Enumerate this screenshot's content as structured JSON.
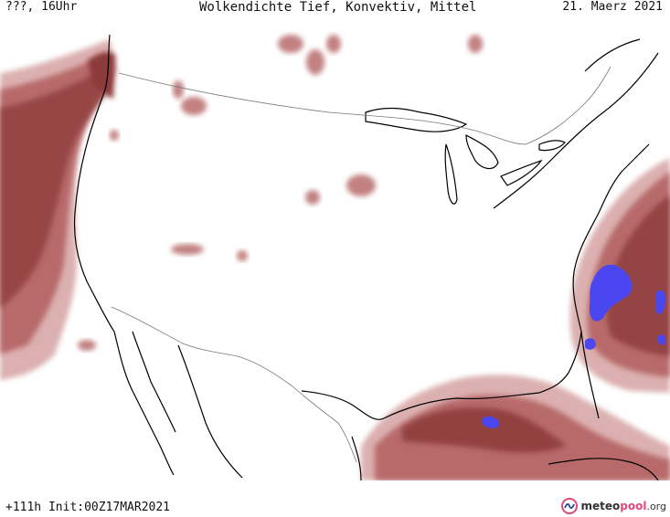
{
  "header": {
    "left": "???, 16Uhr",
    "center": "Wolkendichte   Tief, Konvektiv, Mittel",
    "right": "21. Maerz 2021"
  },
  "footer": {
    "run": "+111h Init:00Z17MAR2021"
  },
  "logo": {
    "part1": "meteo",
    "part2": "pool",
    "part3": ".org",
    "icon": "meteopool-logo-icon"
  },
  "colors": {
    "cloud_dark": "#8c3a3a",
    "cloud_mid": "#b86a6a",
    "cloud_light": "#dcb0b0",
    "convective": "#4a46f0",
    "coast": "#000000",
    "border": "#777777"
  }
}
